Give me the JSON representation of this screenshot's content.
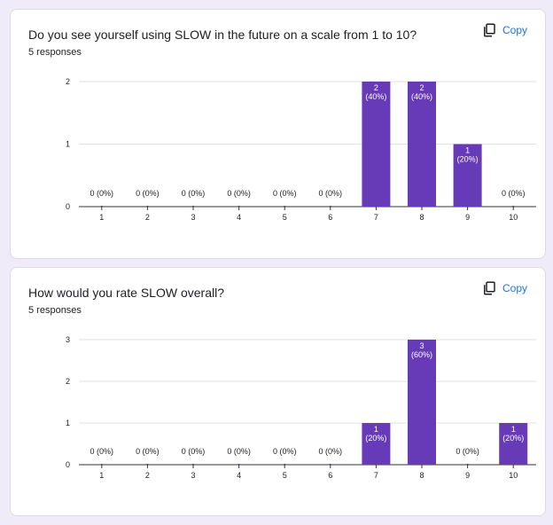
{
  "colors": {
    "bar": "#673ab7",
    "link": "#1a73e8",
    "grid": "#e0e0e0",
    "background": "#f0ebf8"
  },
  "cards": [
    {
      "question": "Do you see yourself using SLOW in the future on a scale from 1 to 10?",
      "responses": "5 responses",
      "copy_label": "Copy",
      "copy_icon": "copy-icon"
    },
    {
      "question": "How would you rate SLOW overall?",
      "responses": "5 responses",
      "copy_label": "Copy",
      "copy_icon": "copy-icon"
    }
  ],
  "chart_data": [
    {
      "type": "bar",
      "categories": [
        "1",
        "2",
        "3",
        "4",
        "5",
        "6",
        "7",
        "8",
        "9",
        "10"
      ],
      "values": [
        0,
        0,
        0,
        0,
        0,
        0,
        2,
        2,
        1,
        0
      ],
      "percents": [
        "0%",
        "0%",
        "0%",
        "0%",
        "0%",
        "0%",
        "40%",
        "40%",
        "20%",
        "0%"
      ],
      "yticks": [
        0,
        1,
        2
      ],
      "ylim": [
        0,
        2
      ]
    },
    {
      "type": "bar",
      "categories": [
        "1",
        "2",
        "3",
        "4",
        "5",
        "6",
        "7",
        "8",
        "9",
        "10"
      ],
      "values": [
        0,
        0,
        0,
        0,
        0,
        0,
        1,
        3,
        0,
        1
      ],
      "percents": [
        "0%",
        "0%",
        "0%",
        "0%",
        "0%",
        "0%",
        "20%",
        "60%",
        "0%",
        "20%"
      ],
      "yticks": [
        0,
        1,
        2,
        3
      ],
      "ylim": [
        0,
        3
      ]
    }
  ]
}
